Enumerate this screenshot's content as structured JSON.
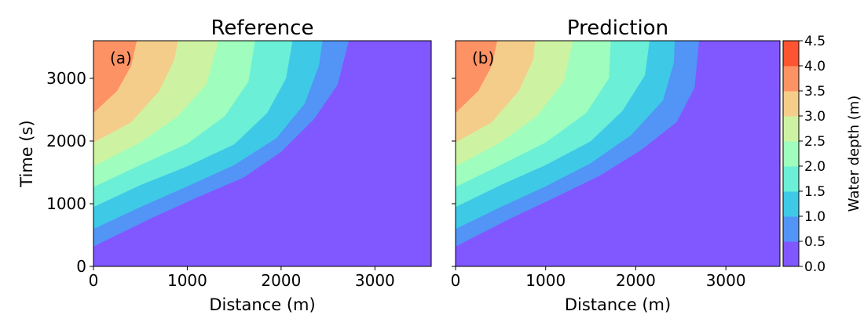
{
  "chart_data": {
    "type": "contourf",
    "colorbar": {
      "label": "Water depth (m)",
      "levels": [
        0.0,
        0.5,
        1.0,
        1.5,
        2.0,
        2.5,
        3.0,
        3.5,
        4.0,
        4.5
      ],
      "tick_labels": [
        "0.0",
        "0.5",
        "1.0",
        "1.5",
        "2.0",
        "2.5",
        "3.0",
        "3.5",
        "4.0",
        "4.5"
      ],
      "colors": [
        "#8157ff",
        "#5295f6",
        "#3ecae7",
        "#6cefd7",
        "#9ffdbd",
        "#cdf3a2",
        "#f5cd8b",
        "#fd9264",
        "#ff5432"
      ]
    },
    "panels": [
      {
        "title": "Reference",
        "panel_label": "(a)",
        "xlabel": "Distance (m)",
        "ylabel": "Time (s)",
        "xlim": [
          0,
          3600
        ],
        "ylim": [
          0,
          3600
        ],
        "xticks": [
          0,
          1000,
          2000,
          3000
        ],
        "xtick_labels": [
          "0",
          "1000",
          "2000",
          "3000"
        ],
        "yticks": [
          0,
          1000,
          2000,
          3000
        ],
        "ytick_labels": [
          "0",
          "1000",
          "2000",
          "3000"
        ],
        "contours": [
          {
            "level": 0.5,
            "points": [
              [
                0,
                320
              ],
              [
                600,
                760
              ],
              [
                1100,
                1100
              ],
              [
                1600,
                1420
              ],
              [
                2000,
                1830
              ],
              [
                2350,
                2350
              ],
              [
                2600,
                2900
              ],
              [
                2720,
                3600
              ]
            ]
          },
          {
            "level": 1.0,
            "points": [
              [
                0,
                600
              ],
              [
                500,
                950
              ],
              [
                1000,
                1280
              ],
              [
                1500,
                1620
              ],
              [
                1950,
                2050
              ],
              [
                2250,
                2600
              ],
              [
                2400,
                3200
              ],
              [
                2440,
                3600
              ]
            ]
          },
          {
            "level": 1.5,
            "points": [
              [
                0,
                950
              ],
              [
                500,
                1300
              ],
              [
                1000,
                1600
              ],
              [
                1500,
                1950
              ],
              [
                1850,
                2450
              ],
              [
                2050,
                3000
              ],
              [
                2120,
                3600
              ]
            ]
          },
          {
            "level": 2.0,
            "points": [
              [
                0,
                1270
              ],
              [
                500,
                1620
              ],
              [
                1000,
                1960
              ],
              [
                1400,
                2400
              ],
              [
                1650,
                2950
              ],
              [
                1720,
                3600
              ]
            ]
          },
          {
            "level": 2.5,
            "points": [
              [
                0,
                1600
              ],
              [
                500,
                1980
              ],
              [
                900,
                2400
              ],
              [
                1200,
                2900
              ],
              [
                1330,
                3600
              ]
            ]
          },
          {
            "level": 3.0,
            "points": [
              [
                0,
                1980
              ],
              [
                400,
                2300
              ],
              [
                700,
                2800
              ],
              [
                860,
                3300
              ],
              [
                900,
                3600
              ]
            ]
          },
          {
            "level": 3.5,
            "points": [
              [
                0,
                2450
              ],
              [
                250,
                2800
              ],
              [
                400,
                3200
              ],
              [
                460,
                3600
              ]
            ]
          }
        ]
      },
      {
        "title": "Prediction",
        "panel_label": "(b)",
        "xlabel": "Distance (m)",
        "ylabel": "",
        "xlim": [
          0,
          3600
        ],
        "ylim": [
          0,
          3600
        ],
        "xticks": [
          0,
          1000,
          2000,
          3000
        ],
        "xtick_labels": [
          "0",
          "1000",
          "2000",
          "3000"
        ],
        "yticks": [
          0,
          1000,
          2000,
          3000
        ],
        "ytick_labels": [],
        "contours": [
          {
            "level": 0.5,
            "points": [
              [
                0,
                320
              ],
              [
                600,
                760
              ],
              [
                1100,
                1100
              ],
              [
                1600,
                1450
              ],
              [
                2050,
                1850
              ],
              [
                2450,
                2300
              ],
              [
                2650,
                2850
              ],
              [
                2700,
                3600
              ]
            ]
          },
          {
            "level": 1.0,
            "points": [
              [
                0,
                600
              ],
              [
                500,
                950
              ],
              [
                1000,
                1280
              ],
              [
                1500,
                1650
              ],
              [
                1950,
                2100
              ],
              [
                2300,
                2650
              ],
              [
                2420,
                3250
              ],
              [
                2430,
                3600
              ]
            ]
          },
          {
            "level": 1.5,
            "points": [
              [
                0,
                950
              ],
              [
                500,
                1300
              ],
              [
                1000,
                1620
              ],
              [
                1500,
                2000
              ],
              [
                1850,
                2480
              ],
              [
                2100,
                3050
              ],
              [
                2150,
                3600
              ]
            ]
          },
          {
            "level": 2.0,
            "points": [
              [
                0,
                1270
              ],
              [
                500,
                1620
              ],
              [
                1000,
                1980
              ],
              [
                1450,
                2450
              ],
              [
                1700,
                3000
              ],
              [
                1720,
                3600
              ]
            ]
          },
          {
            "level": 2.5,
            "points": [
              [
                0,
                1600
              ],
              [
                500,
                1980
              ],
              [
                900,
                2400
              ],
              [
                1200,
                2950
              ],
              [
                1300,
                3600
              ]
            ]
          },
          {
            "level": 3.0,
            "points": [
              [
                0,
                1980
              ],
              [
                400,
                2300
              ],
              [
                700,
                2800
              ],
              [
                860,
                3300
              ],
              [
                880,
                3600
              ]
            ]
          },
          {
            "level": 3.5,
            "points": [
              [
                0,
                2450
              ],
              [
                250,
                2800
              ],
              [
                400,
                3200
              ],
              [
                460,
                3600
              ]
            ]
          }
        ]
      }
    ]
  }
}
